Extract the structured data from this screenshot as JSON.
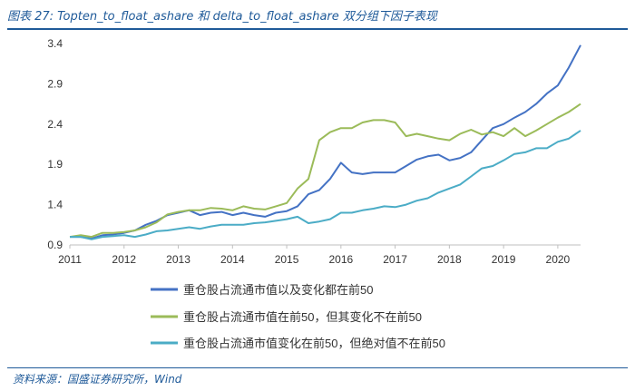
{
  "header": {
    "title": "图表 27:  Topten_to_float_ashare 和 delta_to_float_ashare 双分组下因子表现"
  },
  "footer": {
    "source": "资料来源：国盛证券研究所，Wind"
  },
  "chart_data": {
    "type": "line",
    "title": "",
    "xlabel": "",
    "ylabel": "",
    "x_ticks": [
      "2011",
      "2012",
      "2013",
      "2014",
      "2015",
      "2016",
      "2017",
      "2018",
      "2019",
      "2020"
    ],
    "y_ticks": [
      "0.9",
      "1.4",
      "1.9",
      "2.4",
      "2.9",
      "3.4"
    ],
    "xlim": [
      2011.0,
      2020.42
    ],
    "ylim": [
      0.9,
      3.4
    ],
    "grid": false,
    "legend_position": "bottom",
    "series": [
      {
        "name": "重仓股占流通市值以及变化都在前50",
        "color": "#4472c4",
        "points": [
          [
            2011.0,
            1.0
          ],
          [
            2011.2,
            1.0
          ],
          [
            2011.4,
            0.98
          ],
          [
            2011.6,
            1.02
          ],
          [
            2011.8,
            1.03
          ],
          [
            2012.0,
            1.05
          ],
          [
            2012.2,
            1.08
          ],
          [
            2012.4,
            1.15
          ],
          [
            2012.6,
            1.2
          ],
          [
            2012.8,
            1.27
          ],
          [
            2013.0,
            1.3
          ],
          [
            2013.2,
            1.33
          ],
          [
            2013.4,
            1.27
          ],
          [
            2013.6,
            1.3
          ],
          [
            2013.8,
            1.31
          ],
          [
            2014.0,
            1.27
          ],
          [
            2014.2,
            1.3
          ],
          [
            2014.4,
            1.27
          ],
          [
            2014.6,
            1.25
          ],
          [
            2014.8,
            1.3
          ],
          [
            2015.0,
            1.32
          ],
          [
            2015.2,
            1.38
          ],
          [
            2015.4,
            1.53
          ],
          [
            2015.6,
            1.58
          ],
          [
            2015.8,
            1.72
          ],
          [
            2016.0,
            1.92
          ],
          [
            2016.2,
            1.8
          ],
          [
            2016.4,
            1.78
          ],
          [
            2016.6,
            1.8
          ],
          [
            2016.8,
            1.8
          ],
          [
            2017.0,
            1.8
          ],
          [
            2017.2,
            1.88
          ],
          [
            2017.4,
            1.96
          ],
          [
            2017.6,
            2.0
          ],
          [
            2017.8,
            2.02
          ],
          [
            2018.0,
            1.95
          ],
          [
            2018.2,
            1.98
          ],
          [
            2018.4,
            2.05
          ],
          [
            2018.6,
            2.2
          ],
          [
            2018.8,
            2.35
          ],
          [
            2019.0,
            2.4
          ],
          [
            2019.2,
            2.48
          ],
          [
            2019.4,
            2.55
          ],
          [
            2019.6,
            2.65
          ],
          [
            2019.8,
            2.78
          ],
          [
            2020.0,
            2.88
          ],
          [
            2020.2,
            3.1
          ],
          [
            2020.42,
            3.38
          ]
        ]
      },
      {
        "name": "重仓股占流通市值在前50，但其变化不在前50",
        "color": "#9bbb59",
        "points": [
          [
            2011.0,
            1.0
          ],
          [
            2011.2,
            1.02
          ],
          [
            2011.4,
            1.0
          ],
          [
            2011.6,
            1.05
          ],
          [
            2011.8,
            1.05
          ],
          [
            2012.0,
            1.06
          ],
          [
            2012.2,
            1.08
          ],
          [
            2012.4,
            1.12
          ],
          [
            2012.6,
            1.18
          ],
          [
            2012.8,
            1.28
          ],
          [
            2013.0,
            1.31
          ],
          [
            2013.2,
            1.33
          ],
          [
            2013.4,
            1.33
          ],
          [
            2013.6,
            1.36
          ],
          [
            2013.8,
            1.35
          ],
          [
            2014.0,
            1.33
          ],
          [
            2014.2,
            1.38
          ],
          [
            2014.4,
            1.35
          ],
          [
            2014.6,
            1.34
          ],
          [
            2014.8,
            1.38
          ],
          [
            2015.0,
            1.42
          ],
          [
            2015.2,
            1.6
          ],
          [
            2015.4,
            1.72
          ],
          [
            2015.6,
            2.2
          ],
          [
            2015.8,
            2.3
          ],
          [
            2016.0,
            2.35
          ],
          [
            2016.2,
            2.35
          ],
          [
            2016.4,
            2.42
          ],
          [
            2016.6,
            2.45
          ],
          [
            2016.8,
            2.45
          ],
          [
            2017.0,
            2.42
          ],
          [
            2017.2,
            2.25
          ],
          [
            2017.4,
            2.28
          ],
          [
            2017.6,
            2.25
          ],
          [
            2017.8,
            2.22
          ],
          [
            2018.0,
            2.2
          ],
          [
            2018.2,
            2.28
          ],
          [
            2018.4,
            2.33
          ],
          [
            2018.6,
            2.27
          ],
          [
            2018.8,
            2.3
          ],
          [
            2019.0,
            2.25
          ],
          [
            2019.2,
            2.35
          ],
          [
            2019.4,
            2.25
          ],
          [
            2019.6,
            2.32
          ],
          [
            2019.8,
            2.4
          ],
          [
            2020.0,
            2.48
          ],
          [
            2020.2,
            2.55
          ],
          [
            2020.42,
            2.65
          ]
        ]
      },
      {
        "name": "重仓股占流通市值变化在前50，但绝对值不在前50",
        "color": "#4bacc6",
        "points": [
          [
            2011.0,
            1.0
          ],
          [
            2011.2,
            1.0
          ],
          [
            2011.4,
            0.97
          ],
          [
            2011.6,
            1.0
          ],
          [
            2011.8,
            1.01
          ],
          [
            2012.0,
            1.02
          ],
          [
            2012.2,
            1.0
          ],
          [
            2012.4,
            1.03
          ],
          [
            2012.6,
            1.07
          ],
          [
            2012.8,
            1.08
          ],
          [
            2013.0,
            1.1
          ],
          [
            2013.2,
            1.12
          ],
          [
            2013.4,
            1.1
          ],
          [
            2013.6,
            1.13
          ],
          [
            2013.8,
            1.15
          ],
          [
            2014.0,
            1.15
          ],
          [
            2014.2,
            1.15
          ],
          [
            2014.4,
            1.17
          ],
          [
            2014.6,
            1.18
          ],
          [
            2014.8,
            1.2
          ],
          [
            2015.0,
            1.22
          ],
          [
            2015.2,
            1.25
          ],
          [
            2015.4,
            1.17
          ],
          [
            2015.6,
            1.19
          ],
          [
            2015.8,
            1.22
          ],
          [
            2016.0,
            1.3
          ],
          [
            2016.2,
            1.3
          ],
          [
            2016.4,
            1.33
          ],
          [
            2016.6,
            1.35
          ],
          [
            2016.8,
            1.38
          ],
          [
            2017.0,
            1.37
          ],
          [
            2017.2,
            1.4
          ],
          [
            2017.4,
            1.45
          ],
          [
            2017.6,
            1.48
          ],
          [
            2017.8,
            1.55
          ],
          [
            2018.0,
            1.6
          ],
          [
            2018.2,
            1.65
          ],
          [
            2018.4,
            1.75
          ],
          [
            2018.6,
            1.85
          ],
          [
            2018.8,
            1.88
          ],
          [
            2019.0,
            1.95
          ],
          [
            2019.2,
            2.03
          ],
          [
            2019.4,
            2.05
          ],
          [
            2019.6,
            2.1
          ],
          [
            2019.8,
            2.1
          ],
          [
            2020.0,
            2.18
          ],
          [
            2020.2,
            2.22
          ],
          [
            2020.42,
            2.32
          ]
        ]
      }
    ]
  }
}
